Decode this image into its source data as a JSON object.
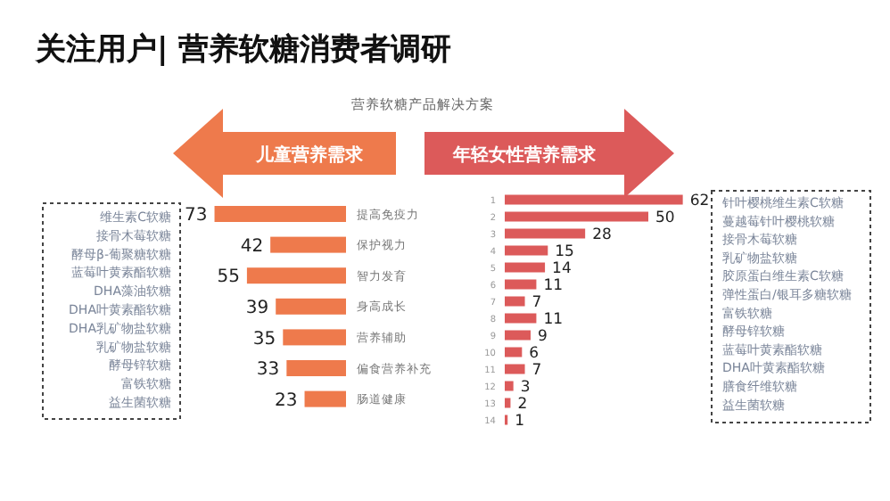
{
  "chart_data": [
    {
      "type": "bar",
      "orientation": "horizontal",
      "title": "关注用户| 营养软糖消费者调研",
      "subtitle": "营养软糖产品解决方案",
      "annotations": [
        "儿童营养需求",
        "维生素C软糖",
        "接骨木莓软糖",
        "酵母β-葡聚糖软糖",
        "蓝莓叶黄素酯软糖",
        "DHA藻油软糖",
        "DHA叶黄素酯软糖",
        "DHA乳矿物盐软糖",
        "乳矿物盐软糖",
        "酵母锌软糖",
        "富铁软糖",
        "益生菌软糖"
      ],
      "categories": [
        "提高免疫力",
        "保护视力",
        "智力发育",
        "身高成长",
        "营养辅助",
        "偏食营养补充",
        "肠道健康"
      ],
      "values": [
        73,
        42,
        55,
        39,
        35,
        33,
        23
      ],
      "color": "#ee7a4c",
      "data_labels": true
    },
    {
      "type": "bar",
      "orientation": "horizontal",
      "annotations": [
        "年轻女性营养需求",
        "针叶樱桃维生素C软糖",
        "蔓越莓针叶樱桃软糖",
        "接骨木莓软糖",
        "乳矿物盐软糖",
        "胶原蛋白维生素C软糖",
        "弹性蛋白/银耳多糖软糖",
        "富铁软糖",
        "酵母锌软糖",
        "蓝莓叶黄素酯软糖",
        "DHA叶黄素酯软糖",
        "膳食纤维软糖",
        "益生菌软糖"
      ],
      "categories": [
        "1",
        "2",
        "3",
        "4",
        "5",
        "6",
        "7",
        "8",
        "9",
        "10",
        "11",
        "12",
        "13",
        "14"
      ],
      "values": [
        62,
        50,
        28,
        15,
        14,
        11,
        7,
        11,
        9,
        6,
        7,
        3,
        2,
        1
      ],
      "color": "#dc5a5a",
      "data_labels": true
    }
  ]
}
